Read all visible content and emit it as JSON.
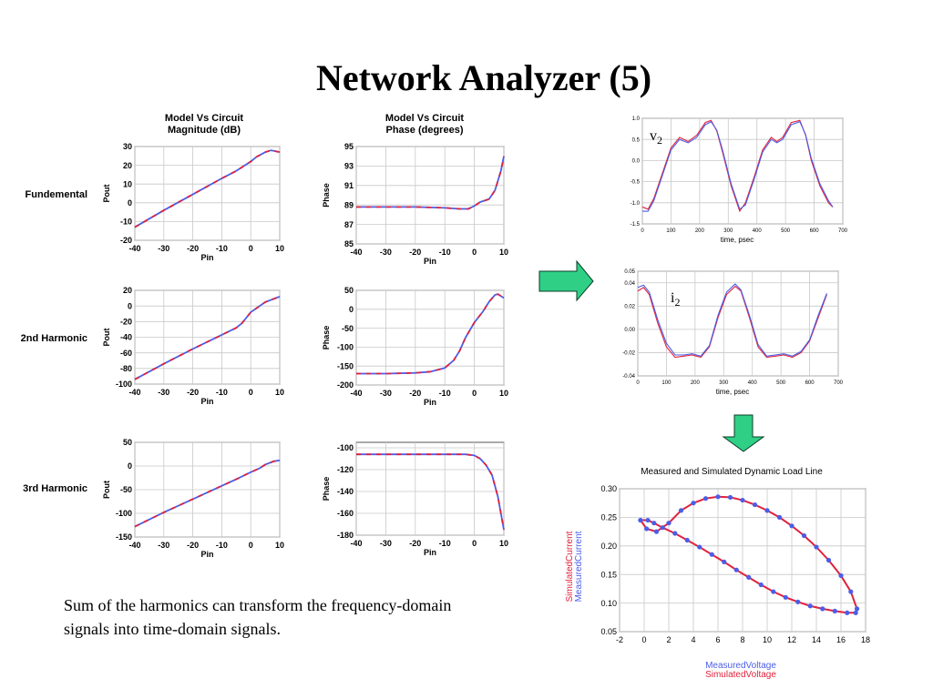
{
  "slide": {
    "title": "Network Analyzer (5)",
    "caption_line1": "Sum of the harmonics can transform the frequency-domain",
    "caption_line2": "signals into time-domain signals."
  },
  "colors": {
    "red": "#e0223d",
    "blue": "#4a5ee8",
    "arrow_fill": "#2fcf86",
    "arrow_stroke": "#0b3d26",
    "grid": "#c8c8c8"
  },
  "grid_titles": {
    "magnitude": [
      "Model Vs Circuit",
      "Magnitude (dB)"
    ],
    "phase": [
      "Model Vs Circuit",
      "Phase (degrees)"
    ]
  },
  "row_labels": [
    "Fundemental",
    "2nd Harmonic",
    "3rd Harmonic"
  ],
  "chart_data": [
    {
      "id": "fund_mag",
      "type": "line",
      "xlabel": "Pin",
      "ylabel": "Pout",
      "xlim": [
        -40,
        10
      ],
      "ylim": [
        -20,
        30
      ],
      "xticks": [
        -40,
        -30,
        -20,
        -10,
        0,
        10
      ],
      "yticks": [
        30,
        20,
        10,
        0,
        -10,
        -20
      ],
      "series": [
        {
          "x": [
            -40,
            -30,
            -20,
            -10,
            -5,
            0,
            2,
            5,
            7,
            10
          ],
          "y": [
            -13,
            -4,
            4.5,
            13,
            17,
            22,
            24.5,
            27,
            28,
            27
          ]
        }
      ]
    },
    {
      "id": "fund_phase",
      "type": "line",
      "xlabel": "Pin",
      "ylabel": "Phase",
      "xlim": [
        -40,
        10
      ],
      "ylim": [
        85,
        95
      ],
      "xticks": [
        -40,
        -30,
        -20,
        -10,
        0,
        10
      ],
      "yticks": [
        95,
        93,
        91,
        89,
        87,
        85
      ],
      "series": [
        {
          "x": [
            -40,
            -30,
            -20,
            -10,
            -5,
            -2,
            0,
            2,
            5,
            7,
            9,
            10
          ],
          "y": [
            88.8,
            88.8,
            88.8,
            88.7,
            88.6,
            88.6,
            88.9,
            89.3,
            89.6,
            90.5,
            92.5,
            94
          ]
        }
      ]
    },
    {
      "id": "h2_mag",
      "type": "line",
      "xlabel": "Pin",
      "ylabel": "Pout",
      "xlim": [
        -40,
        10
      ],
      "ylim": [
        -100,
        20
      ],
      "xticks": [
        -40,
        -30,
        -20,
        -10,
        0,
        10
      ],
      "yticks": [
        20,
        0,
        -20,
        -40,
        -60,
        -80,
        -100
      ],
      "series": [
        {
          "x": [
            -40,
            -30,
            -20,
            -10,
            -5,
            -3,
            0,
            5,
            10
          ],
          "y": [
            -94,
            -74,
            -55,
            -37,
            -28,
            -22,
            -8,
            5,
            12
          ]
        }
      ]
    },
    {
      "id": "h2_phase",
      "type": "line",
      "xlabel": "Pin",
      "ylabel": "Phase",
      "xlim": [
        -40,
        10
      ],
      "ylim": [
        -200,
        50
      ],
      "xticks": [
        -40,
        -30,
        -20,
        -10,
        0,
        10
      ],
      "yticks": [
        50,
        0,
        -50,
        -100,
        -150,
        -200
      ],
      "series": [
        {
          "x": [
            -40,
            -30,
            -20,
            -15,
            -10,
            -7,
            -5,
            -3,
            0,
            3,
            5,
            7,
            8,
            10
          ],
          "y": [
            -170,
            -170,
            -168,
            -165,
            -155,
            -135,
            -110,
            -75,
            -35,
            -5,
            20,
            38,
            40,
            30
          ]
        }
      ]
    },
    {
      "id": "h3_mag",
      "type": "line",
      "xlabel": "Pin",
      "ylabel": "Pout",
      "xlim": [
        -40,
        10
      ],
      "ylim": [
        -150,
        50
      ],
      "xticks": [
        -40,
        -30,
        -20,
        -10,
        0,
        10
      ],
      "yticks": [
        50,
        0,
        -50,
        -100,
        -150
      ],
      "series": [
        {
          "x": [
            -40,
            -30,
            -20,
            -10,
            -5,
            0,
            3,
            5,
            8,
            10
          ],
          "y": [
            -128,
            -98,
            -70,
            -42,
            -28,
            -13,
            -5,
            3,
            10,
            12
          ]
        }
      ]
    },
    {
      "id": "h3_phase",
      "type": "line",
      "xlabel": "Pin",
      "ylabel": "Phase",
      "xlim": [
        -40,
        10
      ],
      "ylim": [
        -180,
        -95
      ],
      "xticks": [
        -40,
        -30,
        -20,
        -10,
        0,
        10
      ],
      "yticks": [
        -100,
        -120,
        -140,
        -160,
        -180
      ],
      "series": [
        {
          "x": [
            -40,
            -30,
            -20,
            -10,
            -3,
            0,
            2,
            4,
            6,
            8,
            10
          ],
          "y": [
            -106,
            -106,
            -106,
            -106,
            -106,
            -107,
            -110,
            -116,
            -125,
            -145,
            -175
          ]
        }
      ]
    },
    {
      "id": "v2",
      "type": "line",
      "xlabel": "time, psec",
      "xlim": [
        0,
        700
      ],
      "ylim": [
        -1.5,
        1.0
      ],
      "xticks": [
        0,
        100,
        200,
        300,
        400,
        500,
        600,
        700
      ],
      "yticks": [
        1.0,
        0.5,
        0.0,
        -0.5,
        -1.0,
        -1.5
      ],
      "label": "v",
      "label_sub": "2",
      "series": [
        {
          "name": "red",
          "x": [
            0,
            20,
            40,
            70,
            100,
            130,
            160,
            190,
            220,
            240,
            260,
            280,
            310,
            340,
            360,
            390,
            420,
            450,
            470,
            490,
            520,
            550,
            570,
            590,
            620,
            650,
            665
          ],
          "y": [
            -1.1,
            -1.15,
            -0.9,
            -0.3,
            0.3,
            0.55,
            0.45,
            0.6,
            0.9,
            0.95,
            0.7,
            0.2,
            -0.6,
            -1.2,
            -1.0,
            -0.4,
            0.25,
            0.55,
            0.45,
            0.55,
            0.9,
            0.95,
            0.6,
            0.0,
            -0.6,
            -1.0,
            -1.1
          ]
        },
        {
          "name": "blue",
          "x": [
            0,
            20,
            40,
            70,
            100,
            130,
            160,
            190,
            220,
            240,
            260,
            280,
            310,
            340,
            360,
            390,
            420,
            450,
            470,
            490,
            520,
            550,
            570,
            590,
            620,
            650,
            665
          ],
          "y": [
            -1.2,
            -1.2,
            -0.95,
            -0.35,
            0.25,
            0.5,
            0.42,
            0.55,
            0.85,
            0.92,
            0.72,
            0.25,
            -0.55,
            -1.15,
            -1.05,
            -0.45,
            0.2,
            0.5,
            0.42,
            0.5,
            0.85,
            0.92,
            0.62,
            0.05,
            -0.55,
            -0.95,
            -1.1
          ]
        }
      ]
    },
    {
      "id": "i2",
      "type": "line",
      "xlabel": "time, psec",
      "xlim": [
        0,
        700
      ],
      "ylim": [
        -0.04,
        0.05
      ],
      "xticks": [
        0,
        100,
        200,
        300,
        400,
        500,
        600,
        700
      ],
      "yticks": [
        0.05,
        0.04,
        0.02,
        0.0,
        -0.02,
        -0.04
      ],
      "label": "i",
      "label_sub": "2",
      "series": [
        {
          "name": "red",
          "x": [
            0,
            20,
            40,
            70,
            100,
            130,
            160,
            190,
            220,
            250,
            280,
            310,
            340,
            360,
            390,
            420,
            450,
            480,
            510,
            540,
            570,
            600,
            630,
            660
          ],
          "y": [
            0.033,
            0.036,
            0.03,
            0.005,
            -0.015,
            -0.024,
            -0.023,
            -0.022,
            -0.024,
            -0.015,
            0.01,
            0.03,
            0.037,
            0.033,
            0.01,
            -0.015,
            -0.024,
            -0.023,
            -0.022,
            -0.024,
            -0.02,
            -0.01,
            0.01,
            0.03
          ]
        },
        {
          "name": "blue",
          "x": [
            0,
            20,
            40,
            70,
            100,
            130,
            160,
            190,
            220,
            250,
            280,
            310,
            340,
            360,
            390,
            420,
            450,
            480,
            510,
            540,
            570,
            600,
            630,
            660
          ],
          "y": [
            0.036,
            0.038,
            0.032,
            0.008,
            -0.012,
            -0.022,
            -0.022,
            -0.021,
            -0.023,
            -0.014,
            0.012,
            0.032,
            0.039,
            0.034,
            0.012,
            -0.013,
            -0.023,
            -0.022,
            -0.021,
            -0.023,
            -0.019,
            -0.009,
            0.012,
            0.031
          ]
        }
      ]
    },
    {
      "id": "loadline",
      "type": "line",
      "title": "Measured and Simulated Dynamic Load Line",
      "xlim": [
        -2,
        18
      ],
      "ylim": [
        0.05,
        0.3
      ],
      "xticks": [
        -2,
        0,
        2,
        4,
        6,
        8,
        10,
        12,
        14,
        16,
        18
      ],
      "yticks": [
        0.3,
        0.25,
        0.2,
        0.15,
        0.1,
        0.05
      ],
      "xlabel_lines": [
        {
          "text": "MeasuredVoltage",
          "color": "blue"
        },
        {
          "text": "SimulatedVoltage",
          "color": "red"
        }
      ],
      "ylabel_lines": [
        {
          "text": "SimulatedCurrent",
          "color": "red"
        },
        {
          "text": "MeasuredCurrent",
          "color": "blue"
        }
      ],
      "series": [
        {
          "name": "simulated",
          "x": [
            -0.3,
            0.2,
            1.0,
            2.0,
            3.0,
            4.0,
            5.0,
            6.0,
            7.0,
            8.0,
            9.0,
            10.0,
            11.0,
            12.0,
            13.0,
            14.0,
            15.0,
            16.0,
            16.8,
            17.3,
            17.2,
            16.5,
            15.5,
            14.5,
            13.5,
            12.5,
            11.5,
            10.5,
            9.5,
            8.5,
            7.5,
            6.5,
            5.5,
            4.5,
            3.5,
            2.5,
            1.5,
            0.8,
            0.3,
            -0.3
          ],
          "y": [
            0.245,
            0.23,
            0.225,
            0.24,
            0.262,
            0.275,
            0.283,
            0.286,
            0.285,
            0.28,
            0.272,
            0.262,
            0.25,
            0.235,
            0.218,
            0.198,
            0.175,
            0.148,
            0.12,
            0.09,
            0.083,
            0.083,
            0.086,
            0.09,
            0.095,
            0.102,
            0.11,
            0.12,
            0.132,
            0.145,
            0.158,
            0.172,
            0.185,
            0.198,
            0.21,
            0.222,
            0.232,
            0.24,
            0.245,
            0.245
          ]
        },
        {
          "name": "measured",
          "x": [
            -0.3,
            0.2,
            1.0,
            2.0,
            3.0,
            4.0,
            5.0,
            6.0,
            7.0,
            8.0,
            9.0,
            10.0,
            11.0,
            12.0,
            13.0,
            14.0,
            15.0,
            16.0,
            16.8,
            17.3,
            17.2,
            16.5,
            15.5,
            14.5,
            13.5,
            12.5,
            11.5,
            10.5,
            9.5,
            8.5,
            7.5,
            6.5,
            5.5,
            4.5,
            3.5,
            2.5,
            1.5,
            0.8,
            0.3,
            -0.3
          ],
          "y": [
            0.245,
            0.23,
            0.225,
            0.24,
            0.262,
            0.275,
            0.283,
            0.286,
            0.285,
            0.28,
            0.272,
            0.262,
            0.25,
            0.235,
            0.218,
            0.198,
            0.175,
            0.148,
            0.12,
            0.09,
            0.083,
            0.083,
            0.086,
            0.09,
            0.095,
            0.102,
            0.11,
            0.12,
            0.132,
            0.145,
            0.158,
            0.172,
            0.185,
            0.198,
            0.21,
            0.222,
            0.232,
            0.24,
            0.245,
            0.245
          ]
        }
      ]
    }
  ]
}
